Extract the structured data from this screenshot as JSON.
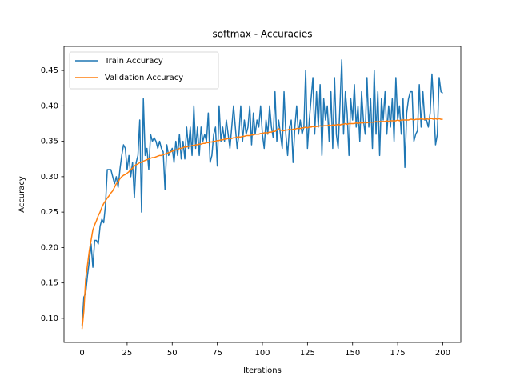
{
  "chart_data": {
    "type": "line",
    "title": "softmax - Accuracies",
    "xlabel": "Iterations",
    "ylabel": "Accuracy",
    "legend": "upper left",
    "xlim": [
      -10,
      210
    ],
    "ylim": [
      0.066,
      0.484
    ],
    "xticks": [
      0,
      25,
      50,
      75,
      100,
      125,
      150,
      175,
      200
    ],
    "yticks": [
      {
        "value": 0.1,
        "label": "0.10"
      },
      0.15,
      {
        "value": 0.2,
        "label": "0.20"
      },
      0.25,
      {
        "value": 0.3,
        "label": "0.30"
      },
      0.35,
      {
        "value": 0.4,
        "label": "0.40"
      },
      0.45
    ],
    "x": [
      0,
      1,
      2,
      3,
      4,
      5,
      6,
      7,
      8,
      9,
      10,
      11,
      12,
      13,
      14,
      15,
      16,
      17,
      18,
      19,
      20,
      21,
      22,
      23,
      24,
      25,
      26,
      27,
      28,
      29,
      30,
      31,
      32,
      33,
      34,
      35,
      36,
      37,
      38,
      39,
      40,
      41,
      42,
      43,
      44,
      45,
      46,
      47,
      48,
      49,
      50,
      51,
      52,
      53,
      54,
      55,
      56,
      57,
      58,
      59,
      60,
      61,
      62,
      63,
      64,
      65,
      66,
      67,
      68,
      69,
      70,
      71,
      72,
      73,
      74,
      75,
      76,
      77,
      78,
      79,
      80,
      81,
      82,
      83,
      84,
      85,
      86,
      87,
      88,
      89,
      90,
      91,
      92,
      93,
      94,
      95,
      96,
      97,
      98,
      99,
      100,
      101,
      102,
      103,
      104,
      105,
      106,
      107,
      108,
      109,
      110,
      111,
      112,
      113,
      114,
      115,
      116,
      117,
      118,
      119,
      120,
      121,
      122,
      123,
      124,
      125,
      126,
      127,
      128,
      129,
      130,
      131,
      132,
      133,
      134,
      135,
      136,
      137,
      138,
      139,
      140,
      141,
      142,
      143,
      144,
      145,
      146,
      147,
      148,
      149,
      150,
      151,
      152,
      153,
      154,
      155,
      156,
      157,
      158,
      159,
      160,
      161,
      162,
      163,
      164,
      165,
      166,
      167,
      168,
      169,
      170,
      171,
      172,
      173,
      174,
      175,
      176,
      177,
      178,
      179,
      180,
      181,
      182,
      183,
      184,
      185,
      186,
      187,
      188,
      189,
      190,
      191,
      192,
      193,
      194,
      195,
      196,
      197,
      198,
      199,
      200
    ],
    "series": [
      {
        "name": "Train Accuracy",
        "color": "#1f77b4",
        "values": [
          0.09,
          0.13,
          0.135,
          0.16,
          0.18,
          0.205,
          0.172,
          0.21,
          0.21,
          0.205,
          0.23,
          0.24,
          0.235,
          0.26,
          0.31,
          0.31,
          0.31,
          0.3,
          0.29,
          0.3,
          0.285,
          0.31,
          0.33,
          0.345,
          0.34,
          0.31,
          0.33,
          0.3,
          0.32,
          0.27,
          0.32,
          0.33,
          0.38,
          0.25,
          0.41,
          0.33,
          0.34,
          0.31,
          0.36,
          0.35,
          0.355,
          0.35,
          0.34,
          0.35,
          0.34,
          0.335,
          0.282,
          0.345,
          0.33,
          0.335,
          0.34,
          0.32,
          0.35,
          0.33,
          0.36,
          0.325,
          0.35,
          0.325,
          0.37,
          0.34,
          0.37,
          0.33,
          0.4,
          0.34,
          0.37,
          0.33,
          0.37,
          0.35,
          0.36,
          0.35,
          0.39,
          0.32,
          0.33,
          0.36,
          0.37,
          0.315,
          0.4,
          0.35,
          0.37,
          0.35,
          0.38,
          0.36,
          0.34,
          0.37,
          0.4,
          0.37,
          0.34,
          0.36,
          0.4,
          0.35,
          0.38,
          0.36,
          0.37,
          0.4,
          0.345,
          0.39,
          0.36,
          0.38,
          0.37,
          0.4,
          0.36,
          0.34,
          0.38,
          0.36,
          0.4,
          0.37,
          0.355,
          0.42,
          0.35,
          0.38,
          0.36,
          0.34,
          0.42,
          0.36,
          0.33,
          0.37,
          0.38,
          0.32,
          0.37,
          0.4,
          0.36,
          0.38,
          0.36,
          0.37,
          0.45,
          0.34,
          0.38,
          0.41,
          0.44,
          0.36,
          0.42,
          0.37,
          0.43,
          0.33,
          0.41,
          0.38,
          0.4,
          0.35,
          0.42,
          0.34,
          0.44,
          0.36,
          0.34,
          0.4,
          0.465,
          0.36,
          0.42,
          0.39,
          0.33,
          0.41,
          0.38,
          0.43,
          0.37,
          0.4,
          0.35,
          0.42,
          0.38,
          0.36,
          0.44,
          0.37,
          0.41,
          0.34,
          0.45,
          0.36,
          0.42,
          0.33,
          0.41,
          0.38,
          0.42,
          0.36,
          0.4,
          0.37,
          0.41,
          0.35,
          0.44,
          0.38,
          0.4,
          0.36,
          0.41,
          0.313,
          0.39,
          0.41,
          0.42,
          0.42,
          0.35,
          0.36,
          0.365,
          0.43,
          0.37,
          0.42,
          0.38,
          0.38,
          0.37,
          0.39,
          0.445,
          0.4,
          0.345,
          0.36,
          0.44,
          0.42,
          0.418
        ]
      },
      {
        "name": "Validation Accuracy",
        "color": "#ff7f0e",
        "values": [
          0.085,
          0.11,
          0.155,
          0.175,
          0.195,
          0.21,
          0.225,
          0.232,
          0.238,
          0.245,
          0.25,
          0.257,
          0.262,
          0.266,
          0.27,
          0.273,
          0.277,
          0.28,
          0.285,
          0.29,
          0.293,
          0.297,
          0.3,
          0.302,
          0.303,
          0.305,
          0.307,
          0.31,
          0.312,
          0.315,
          0.317,
          0.318,
          0.32,
          0.32,
          0.322,
          0.323,
          0.324,
          0.325,
          0.326,
          0.327,
          0.327,
          0.328,
          0.329,
          0.33,
          0.33,
          0.331,
          0.332,
          0.333,
          0.334,
          0.335,
          0.336,
          0.337,
          0.338,
          0.338,
          0.34,
          0.34,
          0.341,
          0.342,
          0.342,
          0.343,
          0.343,
          0.344,
          0.344,
          0.345,
          0.345,
          0.346,
          0.346,
          0.347,
          0.347,
          0.348,
          0.348,
          0.349,
          0.349,
          0.35,
          0.35,
          0.351,
          0.351,
          0.352,
          0.352,
          0.353,
          0.353,
          0.354,
          0.354,
          0.354,
          0.355,
          0.355,
          0.356,
          0.356,
          0.356,
          0.357,
          0.357,
          0.358,
          0.358,
          0.358,
          0.359,
          0.359,
          0.36,
          0.36,
          0.36,
          0.361,
          0.361,
          0.362,
          0.362,
          0.362,
          0.363,
          0.363,
          0.364,
          0.364,
          0.366,
          0.368,
          0.366,
          0.365,
          0.365,
          0.366,
          0.366,
          0.367,
          0.366,
          0.367,
          0.367,
          0.368,
          0.368,
          0.368,
          0.369,
          0.369,
          0.37,
          0.369,
          0.37,
          0.37,
          0.371,
          0.37,
          0.371,
          0.371,
          0.372,
          0.371,
          0.372,
          0.372,
          0.372,
          0.373,
          0.372,
          0.373,
          0.373,
          0.373,
          0.374,
          0.373,
          0.374,
          0.374,
          0.375,
          0.374,
          0.375,
          0.375,
          0.375,
          0.375,
          0.376,
          0.375,
          0.376,
          0.376,
          0.376,
          0.377,
          0.376,
          0.377,
          0.377,
          0.377,
          0.377,
          0.378,
          0.377,
          0.378,
          0.378,
          0.378,
          0.378,
          0.379,
          0.378,
          0.379,
          0.379,
          0.379,
          0.379,
          0.38,
          0.379,
          0.38,
          0.38,
          0.38,
          0.38,
          0.38,
          0.381,
          0.381,
          0.38,
          0.381,
          0.381,
          0.381,
          0.382,
          0.381,
          0.381,
          0.382,
          0.381,
          0.382,
          0.382,
          0.381,
          0.382,
          0.381,
          0.382,
          0.381,
          0.381
        ]
      }
    ]
  }
}
